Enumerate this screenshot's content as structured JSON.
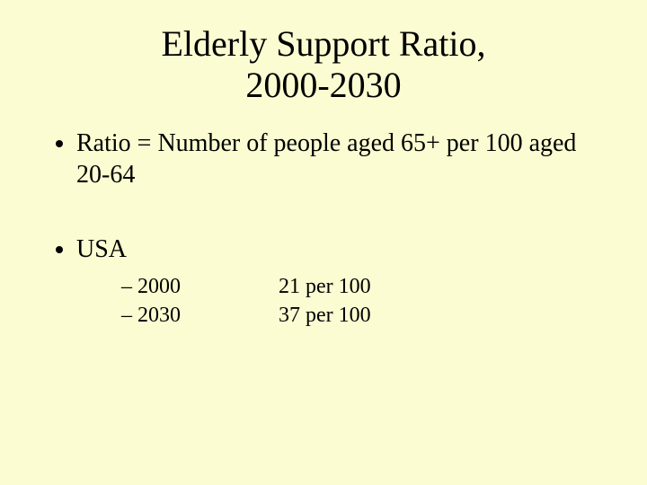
{
  "background_color": "#fcfcd2",
  "text_color": "#000000",
  "font_family": "Times New Roman",
  "title": {
    "line1": "Elderly Support Ratio,",
    "line2": "2000-2030",
    "fontsize_pt": 40
  },
  "bullets": {
    "definition": "Ratio = Number of people aged 65+ per 100 aged 20-64",
    "country": "USA",
    "fontsize_pt": 28
  },
  "sub_bullets": {
    "dash": "–",
    "fontsize_pt": 24,
    "rows": [
      {
        "year": "2000",
        "value": "21 per 100"
      },
      {
        "year": "2030",
        "value": "37 per 100"
      }
    ]
  }
}
